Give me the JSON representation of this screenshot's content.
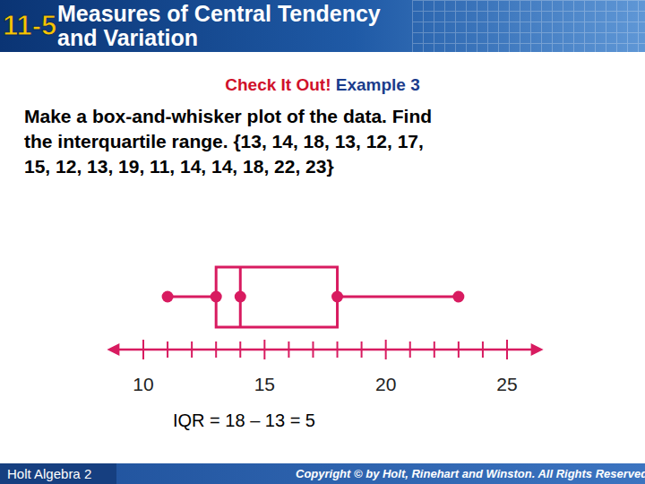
{
  "header": {
    "badge": "11-5",
    "title_lines": [
      "Measures of Central Tendency",
      "and Variation"
    ]
  },
  "check": {
    "lead": "Check It Out!",
    "example": "Example 3"
  },
  "problem_lines": [
    "Make a box-and-whisker plot of the data. Find",
    "the interquartile range. {13, 14, 18, 13, 12, 17,",
    "15, 12, 13, 19, 11, 14, 14, 18, 22, 23}"
  ],
  "chart_data": {
    "type": "box",
    "color": "#d81b60",
    "box": {
      "min": 11,
      "q1": 13,
      "median": 14,
      "q3": 18,
      "max": 23
    },
    "xlim": [
      8.5,
      26.5
    ],
    "xticks": [
      10,
      15,
      20,
      25
    ],
    "minor_xticks": [
      11,
      12,
      13,
      14,
      16,
      17,
      18,
      19,
      21,
      22,
      23,
      24
    ],
    "annotation": "IQR = 18 – 13 = 5"
  },
  "footer": {
    "left": "Holt Algebra 2",
    "right": "Copyright © by Holt, Rinehart and Winston. All Rights Reserved."
  }
}
